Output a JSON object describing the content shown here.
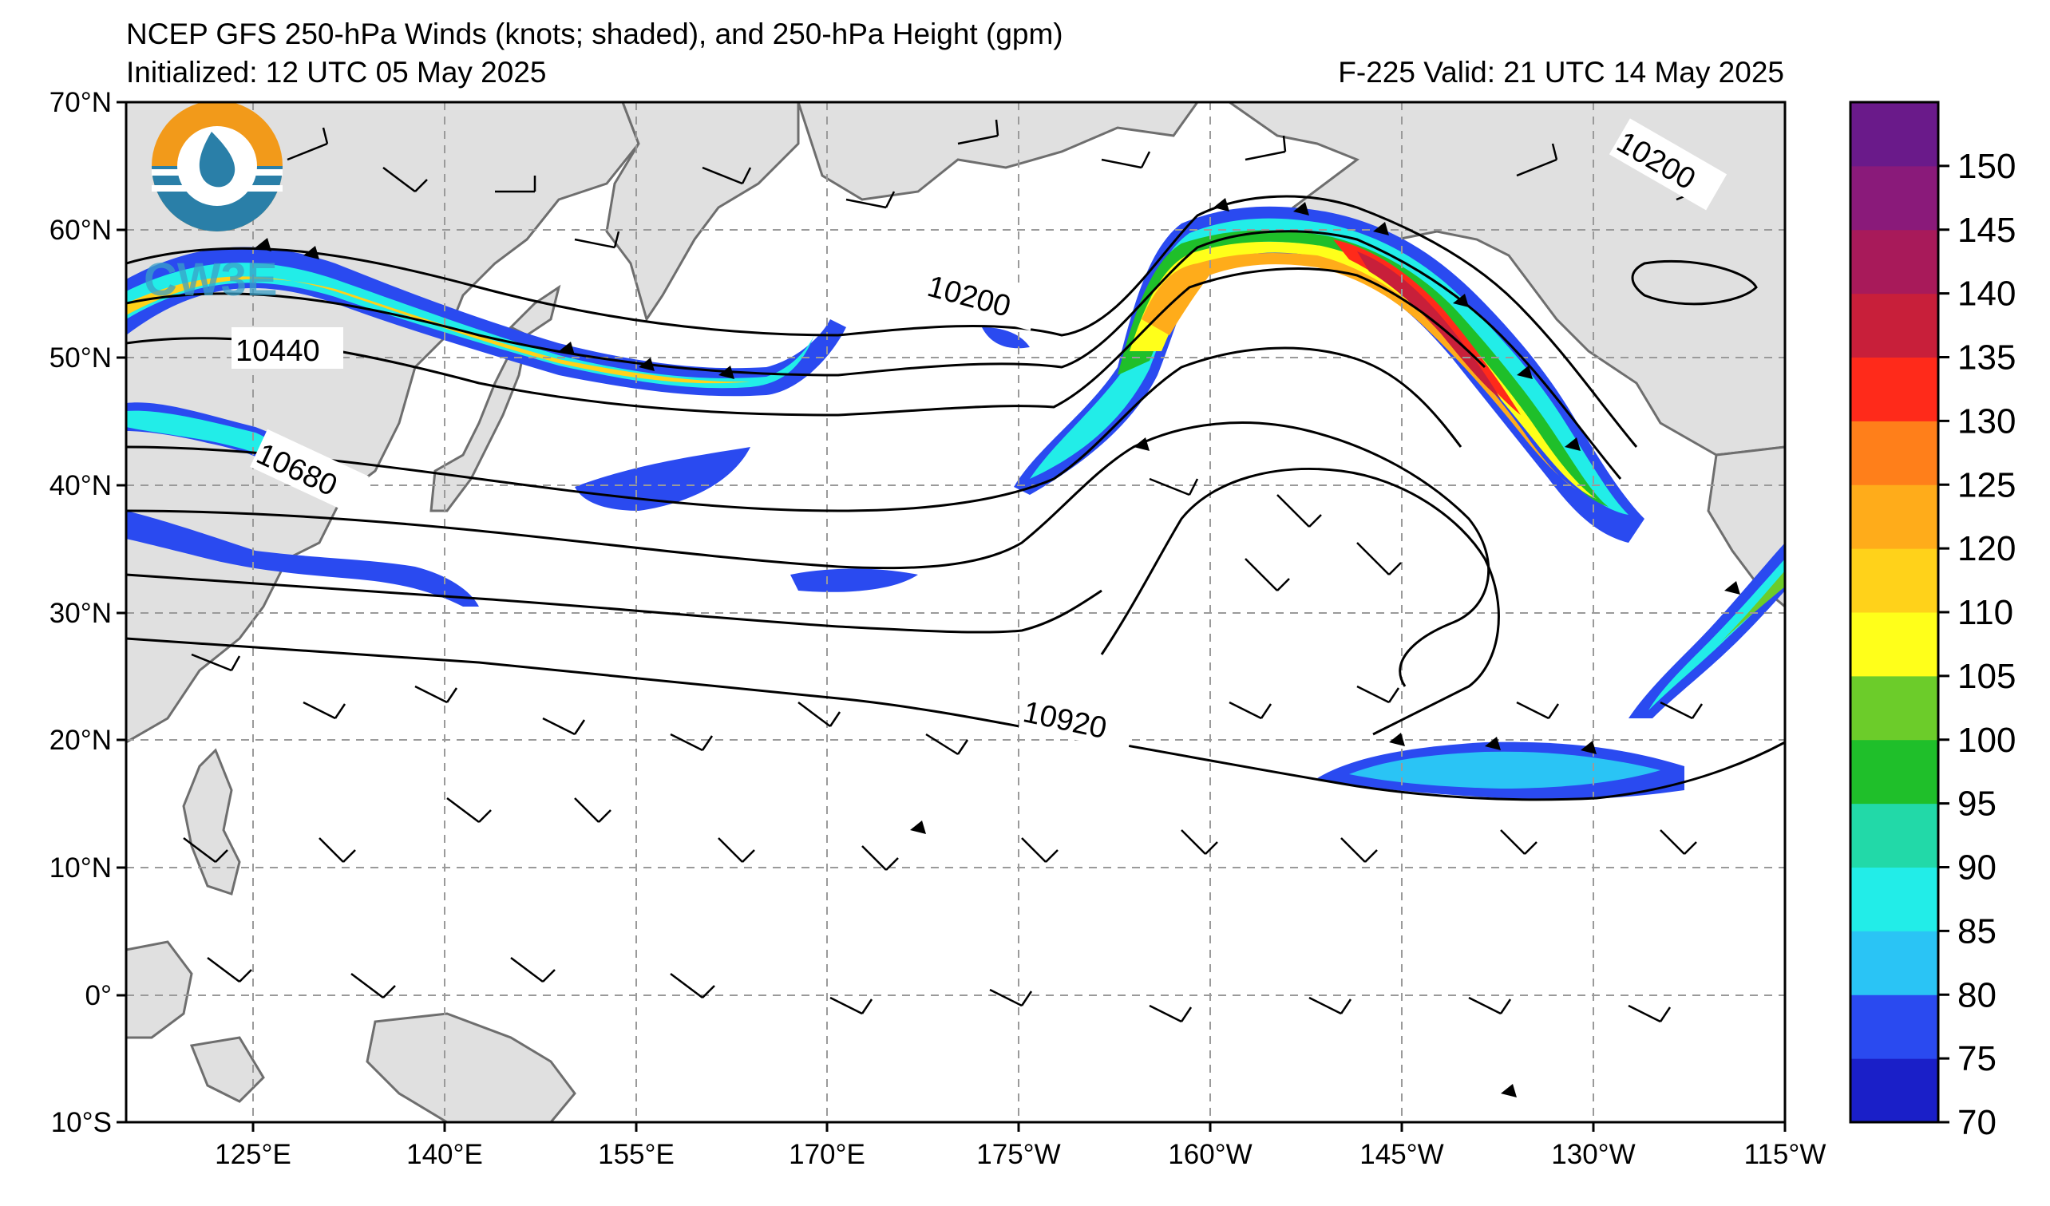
{
  "title": {
    "line1": "NCEP GFS 250-hPa Winds (knots; shaded), and 250-hPa Height (gpm)",
    "initialized": "Initialized: 12 UTC 05 May 2025",
    "valid": "F-225  Valid: 21 UTC 14 May 2025"
  },
  "logo": {
    "text": "CW3E",
    "icon": "cw3e-logo-icon"
  },
  "map": {
    "lat_labels": [
      "70°N",
      "60°N",
      "50°N",
      "40°N",
      "30°N",
      "20°N",
      "10°N",
      "0°",
      "10°S"
    ],
    "lon_labels": [
      "125°E",
      "140°E",
      "155°E",
      "170°E",
      "175°W",
      "160°W",
      "145°W",
      "130°W",
      "115°W"
    ],
    "contour_labels": [
      "10440",
      "10680",
      "10200",
      "10920",
      "10200"
    ],
    "colors": {
      "land": "#e0e0e0",
      "coast": "#6e6e6e",
      "grid": "#9a9a9a",
      "contour": "#000000",
      "barb": "#000000"
    }
  },
  "colorbar": {
    "labels": [
      "70",
      "75",
      "80",
      "85",
      "90",
      "95",
      "100",
      "105",
      "110",
      "120",
      "125",
      "130",
      "135",
      "140",
      "145",
      "150"
    ],
    "colors": [
      "#1a1fc8",
      "#2a4af0",
      "#2ac4f5",
      "#22ede8",
      "#22d9a8",
      "#1fbf2a",
      "#6ccc2a",
      "#ffff1a",
      "#ffd21a",
      "#ffac1a",
      "#ff7f1a",
      "#ff2a1a",
      "#c81f3a",
      "#a81a5a",
      "#8a1a7a",
      "#6a1a8a"
    ]
  },
  "chart_data": {
    "type": "heatmap",
    "title": "NCEP GFS 250-hPa Winds (knots; shaded), and 250-hPa Height (gpm)",
    "xlim": [
      "115°E",
      "115°W"
    ],
    "ylim": [
      "10°S",
      "70°N"
    ],
    "color_scale_min": 70,
    "color_scale_max": 150,
    "contour_values": [
      10200,
      10440,
      10680,
      10920
    ]
  }
}
